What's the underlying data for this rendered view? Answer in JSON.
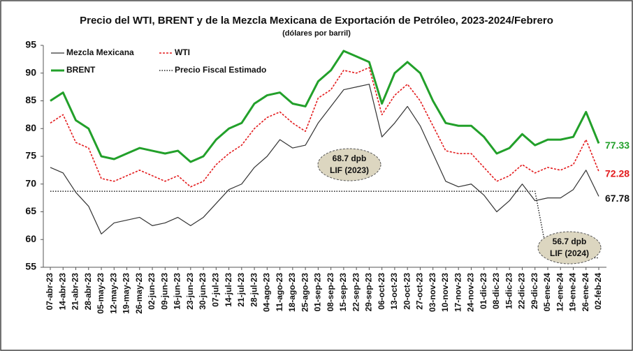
{
  "chart_data": {
    "type": "line",
    "title": "Precio del WTI, BRENT y de la Mezcla Mexicana de Exportación de Petróleo, 2023-2024/Febrero",
    "subtitle": "(dólares por barril)",
    "categories": [
      "07-abr-23",
      "14-abr-23",
      "21-abr-23",
      "28-abr-23",
      "05-may-23",
      "12-may-23",
      "19-may-23",
      "26-may-23",
      "02-jun-23",
      "09-jun-23",
      "16-jun-23",
      "23-jun-23",
      "30-jun-23",
      "07-jul-23",
      "14-jul-23",
      "21-jul-23",
      "28-jul-23",
      "04-ago-23",
      "11-ago-23",
      "18-ago-23",
      "25-ago-23",
      "01-sep-23",
      "08-sep-23",
      "15-sep-23",
      "22-sep-23",
      "29-sep-23",
      "06-oct-23",
      "13-oct-23",
      "20-oct-23",
      "27-oct-23",
      "03-nov-23",
      "10-nov-23",
      "17-nov-23",
      "24-nov-23",
      "01-dic-23",
      "08-dic-23",
      "15-dic-23",
      "22-dic-23",
      "29-dic-23",
      "05-ene-24",
      "12-ene-24",
      "19-ene-24",
      "26-ene-24",
      "02-feb-24"
    ],
    "series": [
      {
        "name": "Mezcla Mexicana",
        "color": "#333333",
        "style": "solid",
        "width": 1.2,
        "values": [
          73,
          72,
          68.5,
          66,
          61,
          63,
          63.5,
          64,
          62.5,
          63,
          64,
          62.5,
          64,
          66.5,
          69,
          70,
          73,
          75,
          78,
          76.5,
          77,
          81,
          84,
          87,
          87.5,
          88,
          78.5,
          81,
          84,
          80.5,
          75.5,
          70.5,
          69.5,
          70,
          68,
          65,
          67,
          70,
          67,
          67.5,
          67.5,
          69,
          72.5,
          67.78
        ]
      },
      {
        "name": "WTI",
        "color": "#e31a1c",
        "style": "dotted",
        "width": 1.6,
        "values": [
          81,
          82.5,
          77.5,
          76.5,
          71,
          70.5,
          71.5,
          72.5,
          71.5,
          70.5,
          71.5,
          69.5,
          70.5,
          73.5,
          75.5,
          77,
          80,
          82,
          83,
          81,
          79.5,
          85.5,
          87,
          90.5,
          90,
          91,
          82.5,
          86,
          88,
          85,
          80.5,
          76,
          75.5,
          75.5,
          73,
          70.5,
          71.5,
          73.5,
          72,
          73,
          72.5,
          73.5,
          78,
          72.28
        ]
      },
      {
        "name": "BRENT",
        "color": "#22a02a",
        "style": "solid",
        "width": 3,
        "values": [
          85,
          86.5,
          81.5,
          80,
          75,
          74.5,
          75.5,
          76.5,
          76,
          75.5,
          76,
          74,
          75,
          78,
          80,
          81,
          84.5,
          86,
          86.5,
          84.5,
          84,
          88.5,
          90.5,
          94,
          93,
          92,
          84.5,
          90,
          92,
          90,
          85,
          81,
          80.5,
          80.5,
          78.5,
          75.5,
          76.5,
          79,
          77,
          78,
          78,
          78.5,
          83,
          77.33
        ]
      },
      {
        "name": "Precio Fiscal Estimado",
        "color": "#222222",
        "style": "dotted-fine",
        "width": 1.5,
        "values": [
          68.7,
          68.7,
          68.7,
          68.7,
          68.7,
          68.7,
          68.7,
          68.7,
          68.7,
          68.7,
          68.7,
          68.7,
          68.7,
          68.7,
          68.7,
          68.7,
          68.7,
          68.7,
          68.7,
          68.7,
          68.7,
          68.7,
          68.7,
          68.7,
          68.7,
          68.7,
          68.7,
          68.7,
          68.7,
          68.7,
          68.7,
          68.7,
          68.7,
          68.7,
          68.7,
          68.7,
          68.7,
          68.7,
          68.7,
          56.7,
          56.7,
          56.7,
          56.7,
          56.7
        ]
      }
    ],
    "ylim": [
      55,
      95
    ],
    "yticks": [
      55,
      60,
      65,
      70,
      75,
      80,
      85,
      90,
      95
    ],
    "annotations": [
      [
        "68.7 dpb",
        "LIF (2023)"
      ],
      [
        "56.7 dpb",
        "LIF (2024)"
      ]
    ]
  }
}
